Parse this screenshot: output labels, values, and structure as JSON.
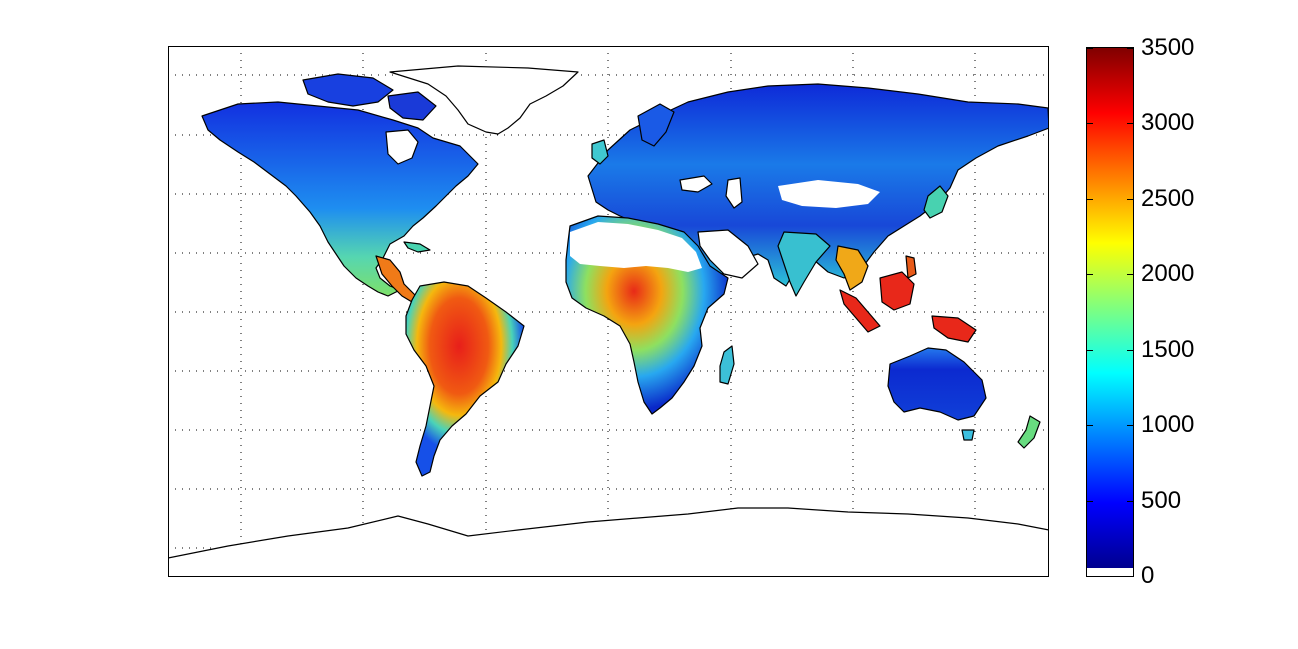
{
  "colorbar": {
    "ticks": [
      "0",
      "500",
      "1000",
      "1500",
      "2000",
      "2500",
      "3000",
      "3500"
    ],
    "values": [
      0,
      500,
      1000,
      1500,
      2000,
      2500,
      3000,
      3500
    ],
    "min": 0,
    "max": 3500,
    "colormap": "jet",
    "zero_color": "#ffffff"
  },
  "map": {
    "projection": "equirectangular",
    "grid": true,
    "grid_style": "dotted",
    "colors": {
      "frame": "#000000",
      "coastline": "#000000",
      "high": "#e8231b",
      "low": "#0b22c8"
    }
  }
}
